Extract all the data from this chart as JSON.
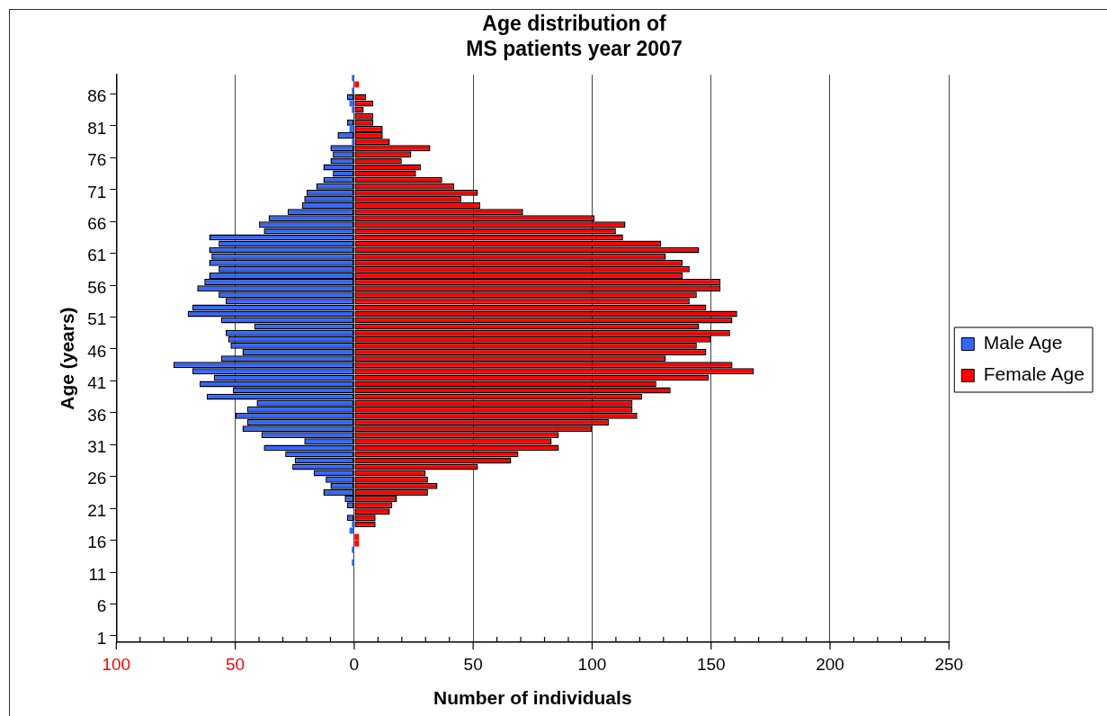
{
  "chart_data": {
    "type": "bar",
    "orientation": "horizontal",
    "stacked": true,
    "title": "Age distribution of\nMS patients year 2007",
    "xlabel": "Number of individuals",
    "ylabel": "Age (years)",
    "categories": [
      null,
      null,
      null,
      "86",
      null,
      null,
      null,
      null,
      "81",
      null,
      null,
      null,
      null,
      "76",
      null,
      null,
      null,
      null,
      "71",
      null,
      null,
      null,
      null,
      "66",
      null,
      null,
      null,
      null,
      "61",
      null,
      null,
      null,
      null,
      "56",
      null,
      null,
      null,
      null,
      "51",
      null,
      null,
      null,
      null,
      "46",
      null,
      null,
      null,
      null,
      "41",
      null,
      null,
      null,
      null,
      "36",
      null,
      null,
      null,
      null,
      "31",
      null,
      null,
      null,
      null,
      "26",
      null,
      null,
      null,
      null,
      "21",
      null,
      null,
      null,
      null,
      "16",
      null,
      null,
      null,
      null,
      "11",
      null,
      null,
      null,
      null,
      "6",
      null,
      null,
      null,
      null,
      "1"
    ],
    "series": [
      {
        "name": "Male Age",
        "color": "#3366ff",
        "values": [
          -1,
          0,
          -1,
          -3,
          -2,
          -1,
          0,
          -3,
          -2,
          -7,
          -1,
          -10,
          -9,
          -10,
          -13,
          -9,
          -13,
          -16,
          -20,
          -21,
          -22,
          -28,
          -36,
          -40,
          -38,
          -61,
          -57,
          -61,
          -60,
          -61,
          -57,
          -61,
          -63,
          -66,
          -57,
          -54,
          -68,
          -70,
          -56,
          -42,
          -54,
          -53,
          -52,
          -47,
          -56,
          -76,
          -68,
          -59,
          -65,
          -51,
          -62,
          -41,
          -45,
          -50,
          -45,
          -47,
          -39,
          -21,
          -38,
          -29,
          -25,
          -26,
          -17,
          -12,
          -10,
          -13,
          -4,
          -3,
          0,
          -3,
          -1,
          -2,
          0,
          0,
          -1,
          0,
          -1,
          0,
          0,
          0,
          0,
          0,
          0,
          0,
          0,
          0,
          0,
          0,
          0
        ]
      },
      {
        "name": "Female Age",
        "color": "#ff0000",
        "values": [
          0,
          2,
          0,
          5,
          8,
          4,
          8,
          8,
          12,
          12,
          15,
          32,
          24,
          20,
          28,
          26,
          37,
          42,
          52,
          45,
          53,
          71,
          101,
          114,
          110,
          113,
          129,
          145,
          131,
          138,
          141,
          138,
          154,
          154,
          144,
          141,
          148,
          161,
          159,
          145,
          158,
          150,
          144,
          148,
          131,
          159,
          168,
          149,
          127,
          133,
          121,
          117,
          117,
          119,
          107,
          100,
          86,
          83,
          86,
          69,
          66,
          52,
          30,
          31,
          35,
          31,
          18,
          16,
          15,
          9,
          9,
          0,
          2,
          2,
          0,
          0,
          0,
          0,
          0,
          0,
          0,
          0,
          0,
          0,
          0,
          0,
          0,
          0,
          0
        ]
      }
    ],
    "xlim": [
      -100,
      250
    ],
    "xticks": [
      {
        "value": -100,
        "label": "100"
      },
      {
        "value": -90,
        "label": null
      },
      {
        "value": -80,
        "label": null
      },
      {
        "value": -70,
        "label": null
      },
      {
        "value": -60,
        "label": null
      },
      {
        "value": -50,
        "label": "50"
      },
      {
        "value": -40,
        "label": null
      },
      {
        "value": -30,
        "label": null
      },
      {
        "value": -20,
        "label": null
      },
      {
        "value": -10,
        "label": null
      },
      0,
      {
        "value": 10,
        "label": null
      },
      {
        "value": 20,
        "label": null
      },
      {
        "value": 30,
        "label": null
      },
      {
        "value": 40,
        "label": null
      },
      50,
      {
        "value": 60,
        "label": null
      },
      {
        "value": 70,
        "label": null
      },
      {
        "value": 80,
        "label": null
      },
      {
        "value": 90,
        "label": null
      },
      100,
      {
        "value": 110,
        "label": null
      },
      {
        "value": 120,
        "label": null
      },
      {
        "value": 130,
        "label": null
      },
      {
        "value": 140,
        "label": null
      },
      150,
      {
        "value": 160,
        "label": null
      },
      {
        "value": 170,
        "label": null
      },
      {
        "value": 180,
        "label": null
      },
      {
        "value": 190,
        "label": null
      },
      200,
      {
        "value": 210,
        "label": null
      },
      {
        "value": 220,
        "label": null
      },
      {
        "value": 230,
        "label": null
      },
      {
        "value": 240,
        "label": null
      },
      250
    ],
    "grid": "x",
    "legend": "right"
  }
}
